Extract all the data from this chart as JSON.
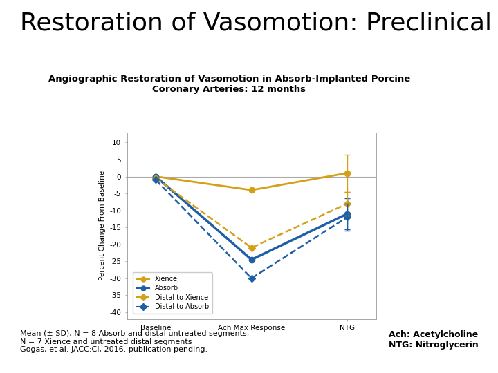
{
  "title_main": "Restoration of Vasomotion: Preclinical",
  "title_sub": "Angiographic Restoration of Vasomotion in Absorb-Implanted Porcine\nCoronary Arteries: 12 months",
  "ylabel": "Percent Change From Baseline",
  "xtick_labels": [
    "Baseline",
    "Ach Max Response",
    "NTG"
  ],
  "ylim": [
    -42,
    13
  ],
  "yticks": [
    10,
    5,
    0,
    -5,
    -10,
    -15,
    -20,
    -25,
    -30,
    -35,
    -40
  ],
  "series": {
    "Xience": {
      "values": [
        0,
        -4,
        1
      ],
      "yerr_ntg": 5.5,
      "color": "#D4A017",
      "dashes": false,
      "marker": "o",
      "lw": 2.0
    },
    "Absorb": {
      "values": [
        0,
        -24.5,
        -11
      ],
      "yerr_ntg": 4.5,
      "color": "#1F5FA6",
      "dashes": false,
      "marker": "o",
      "lw": 2.5
    },
    "Distal to Xience": {
      "values": [
        -0.5,
        -21,
        -8
      ],
      "yerr_ntg": 3.5,
      "color": "#D4A017",
      "dashes": true,
      "marker": "D",
      "lw": 1.8
    },
    "Distal to Absorb": {
      "values": [
        -1,
        -30,
        -12
      ],
      "yerr_ntg": 4.0,
      "color": "#1F5FA6",
      "dashes": true,
      "marker": "D",
      "lw": 1.8
    }
  },
  "footnote_left": "Mean (± SD), N = 8 Absorb and distal untreated segments;\nN = 7 Xience and untreated distal segments\nGogas, et al. JACC:CI, 2016. publication pending.",
  "footnote_right": "Ach: Acetylcholine\nNTG: Nitroglycerin",
  "background_color": "#FFFFFF"
}
